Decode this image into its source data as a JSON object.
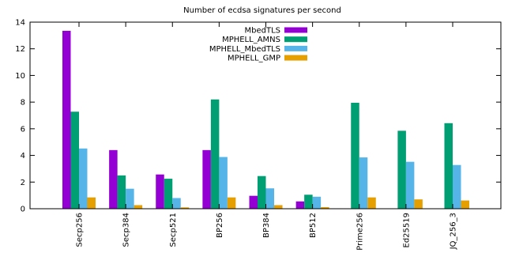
{
  "chart_data": {
    "type": "bar",
    "title": "Number of ecdsa signatures per second",
    "xlabel": "",
    "ylabel": "",
    "ylim": [
      0,
      14
    ],
    "yticks": [
      0,
      2,
      4,
      6,
      8,
      10,
      12,
      14
    ],
    "grid": false,
    "legend_position": "top-center",
    "categories": [
      "Secp256",
      "Secp384",
      "Secp521",
      "BP256",
      "BP384",
      "BP512",
      "Prime256",
      "Ed25519",
      "JQ_256_3"
    ],
    "series": [
      {
        "name": "MbedTLS",
        "color": "#9400d3",
        "values": [
          13.35,
          4.4,
          2.57,
          4.4,
          0.97,
          0.55,
          null,
          null,
          null
        ]
      },
      {
        "name": "MPHELL_AMNS",
        "color": "#009e73",
        "values": [
          7.28,
          2.5,
          2.25,
          8.2,
          2.45,
          1.05,
          7.95,
          5.85,
          6.42
        ]
      },
      {
        "name": "MPHELL_MbedTLS",
        "color": "#56b4e9",
        "values": [
          4.52,
          1.5,
          0.8,
          3.88,
          1.53,
          0.9,
          3.85,
          3.52,
          3.28
        ]
      },
      {
        "name": "MPHELL_GMP",
        "color": "#e69f00",
        "values": [
          0.85,
          0.27,
          0.1,
          0.85,
          0.27,
          0.12,
          0.85,
          0.7,
          0.62
        ]
      }
    ]
  }
}
